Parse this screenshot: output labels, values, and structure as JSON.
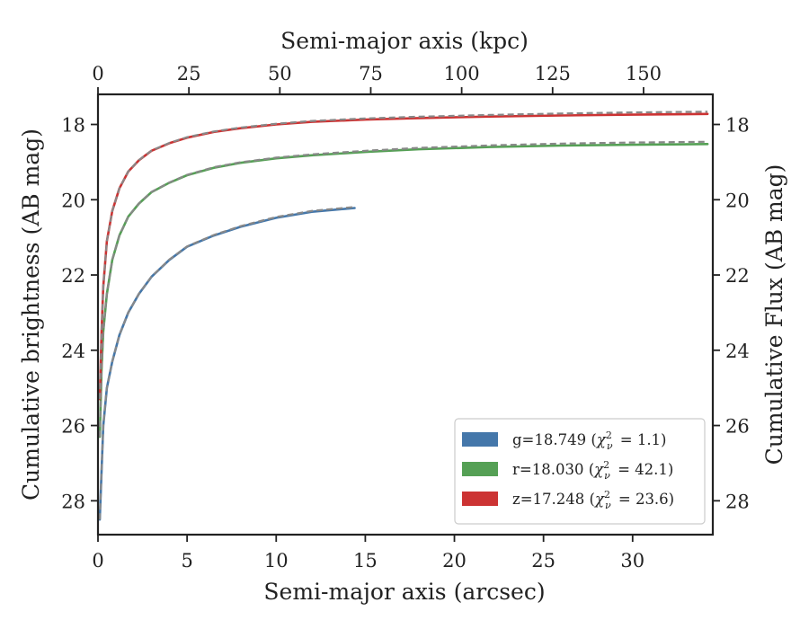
{
  "chart_data": {
    "type": "line",
    "xlabel": "Semi-major axis (arcsec)",
    "ylabel": "Cumulative brightness (AB mag)",
    "top_xlabel": "Semi-major axis (kpc)",
    "right_ylabel": "Cumulative Flux (AB mag)",
    "xlim": [
      0,
      34.5
    ],
    "ylim": [
      28.9,
      17.2
    ],
    "y_inverted": true,
    "xticks": [
      "0",
      "5",
      "10",
      "15",
      "20",
      "25",
      "30"
    ],
    "yticks": [
      "18",
      "20",
      "22",
      "24",
      "26",
      "28"
    ],
    "top_xticks": [
      "0",
      "25",
      "50",
      "75",
      "100",
      "125",
      "150"
    ],
    "right_yticks": [
      "18",
      "20",
      "22",
      "24",
      "26",
      "28"
    ],
    "kpc_per_arcsec": 4.9,
    "legend_position": "lower right",
    "grid": false,
    "series": [
      {
        "name": "g=18.749",
        "chi2_text": "1.1",
        "color": "#4477aa",
        "x": [
          0.1,
          0.2,
          0.3,
          0.5,
          0.8,
          1.2,
          1.7,
          2.3,
          3.0,
          4.0,
          5.0,
          6.5,
          8.0,
          10.0,
          12.0,
          14.4
        ],
        "y": [
          28.5,
          27.2,
          26.0,
          25.0,
          24.3,
          23.6,
          23.0,
          22.5,
          22.05,
          21.6,
          21.25,
          20.95,
          20.72,
          20.48,
          20.32,
          20.22
        ]
      },
      {
        "name": "r=18.030",
        "chi2_text": "42.1",
        "color": "#55a055",
        "x": [
          0.1,
          0.2,
          0.3,
          0.5,
          0.8,
          1.2,
          1.7,
          2.3,
          3.0,
          4.0,
          5.0,
          6.5,
          8.0,
          10.0,
          12.0,
          15.0,
          18.0,
          22.0,
          26.0,
          30.0,
          34.2
        ],
        "y": [
          26.3,
          24.5,
          23.5,
          22.5,
          21.6,
          20.95,
          20.45,
          20.1,
          19.8,
          19.55,
          19.35,
          19.15,
          19.02,
          18.9,
          18.82,
          18.73,
          18.66,
          18.6,
          18.56,
          18.54,
          18.52
        ]
      },
      {
        "name": "z=17.248",
        "chi2_text": "23.6",
        "color": "#cc3333",
        "x": [
          0.1,
          0.2,
          0.3,
          0.5,
          0.8,
          1.2,
          1.7,
          2.3,
          3.0,
          4.0,
          5.0,
          6.5,
          8.0,
          10.0,
          12.0,
          15.0,
          18.0,
          22.0,
          26.0,
          30.0,
          34.2
        ],
        "y": [
          25.3,
          23.5,
          22.3,
          21.1,
          20.3,
          19.7,
          19.25,
          18.95,
          18.7,
          18.5,
          18.35,
          18.2,
          18.1,
          18.0,
          17.93,
          17.87,
          17.83,
          17.79,
          17.76,
          17.74,
          17.72
        ]
      }
    ],
    "model_line": {
      "style": "dashed",
      "color": "#888888"
    }
  }
}
